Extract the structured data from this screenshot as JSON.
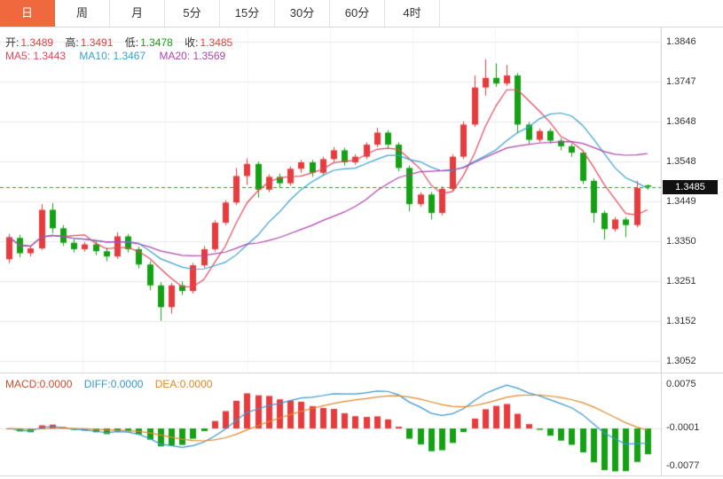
{
  "tabs": {
    "items": [
      {
        "label": "日",
        "active": true
      },
      {
        "label": "周",
        "active": false
      },
      {
        "label": "月",
        "active": false
      },
      {
        "label": "5分",
        "active": false
      },
      {
        "label": "15分",
        "active": false
      },
      {
        "label": "30分",
        "active": false
      },
      {
        "label": "60分",
        "active": false
      },
      {
        "label": "4时",
        "active": false
      }
    ]
  },
  "ohlc_bar": {
    "open_label": "开:",
    "open_value": "1.3489",
    "high_label": "高:",
    "high_value": "1.3491",
    "low_label": "低:",
    "low_value": "1.3478",
    "close_label": "收:",
    "close_value": "1.3485"
  },
  "ma_bar": {
    "ma5_label": "MA5:",
    "ma5_value": "1.3443",
    "ma10_label": "MA10:",
    "ma10_value": "1.3467",
    "ma20_label": "MA20:",
    "ma20_value": "1.3569"
  },
  "macd_bar": {
    "macd_label": "MACD:",
    "macd_value": "0.0000",
    "diff_label": "DIFF:",
    "diff_value": "0.0000",
    "dea_label": "DEA:",
    "dea_value": "0.0000"
  },
  "price_axis": {
    "labels": [
      "1.3846",
      "1.3747",
      "1.3648",
      "1.3548",
      "1.3449",
      "1.3350",
      "1.3251",
      "1.3152",
      "1.3052"
    ],
    "last_price": "1.3485"
  },
  "macd_axis": {
    "labels": [
      "0.0075",
      "-0.0001",
      "-0.0077"
    ]
  },
  "colors": {
    "candle_up": "#e83b3d",
    "candle_down": "#14a114",
    "ma5": "#e2485c",
    "ma10": "#3ba0cf",
    "ma20": "#b044b0",
    "diff": "#3a97d0",
    "dea": "#e0882a",
    "last_price_line": "#1fa31f",
    "price_tag_bg": "#111111",
    "price_tag_text": "#ffffff",
    "active_tab_bg": "#f0683e",
    "active_tab_text": "#ffffff"
  },
  "chart_data": [
    {
      "type": "candlestick",
      "ylim": [
        1.3052,
        1.3846
      ],
      "grid": true,
      "last_price": 1.3485,
      "overlays": [
        {
          "name": "MA5",
          "period": 5,
          "last_value": 1.3443
        },
        {
          "name": "MA10",
          "period": 10,
          "last_value": 1.3467
        },
        {
          "name": "MA20",
          "period": 20,
          "last_value": 1.3569
        }
      ],
      "ohlc": [
        [
          1.3305,
          1.3368,
          1.3295,
          1.336
        ],
        [
          1.3358,
          1.3366,
          1.331,
          1.332
        ],
        [
          1.332,
          1.3338,
          1.3312,
          1.3332
        ],
        [
          1.3332,
          1.3442,
          1.3328,
          1.3428
        ],
        [
          1.3428,
          1.3445,
          1.337,
          1.3382
        ],
        [
          1.3382,
          1.339,
          1.3338,
          1.3346
        ],
        [
          1.3346,
          1.3355,
          1.3322,
          1.333
        ],
        [
          1.333,
          1.3348,
          1.3324,
          1.3342
        ],
        [
          1.3342,
          1.335,
          1.3315,
          1.3325
        ],
        [
          1.3325,
          1.3334,
          1.33,
          1.3312
        ],
        [
          1.3312,
          1.3372,
          1.3306,
          1.3362
        ],
        [
          1.3362,
          1.3368,
          1.3322,
          1.333
        ],
        [
          1.333,
          1.3336,
          1.3282,
          1.3292
        ],
        [
          1.3292,
          1.33,
          1.3228,
          1.324
        ],
        [
          1.324,
          1.3248,
          1.3152,
          1.3186
        ],
        [
          1.3186,
          1.3246,
          1.317,
          1.324
        ],
        [
          1.324,
          1.325,
          1.3216,
          1.3226
        ],
        [
          1.3226,
          1.3296,
          1.322,
          1.329
        ],
        [
          1.329,
          1.3338,
          1.3284,
          1.333
        ],
        [
          1.333,
          1.3402,
          1.3324,
          1.3396
        ],
        [
          1.3396,
          1.3452,
          1.339,
          1.3446
        ],
        [
          1.3446,
          1.3532,
          1.344,
          1.3512
        ],
        [
          1.3512,
          1.3556,
          1.349,
          1.3542
        ],
        [
          1.3542,
          1.3548,
          1.3458,
          1.3478
        ],
        [
          1.3478,
          1.3516,
          1.3472,
          1.351
        ],
        [
          1.351,
          1.3518,
          1.3482,
          1.3494
        ],
        [
          1.3494,
          1.3536,
          1.3488,
          1.353
        ],
        [
          1.353,
          1.3552,
          1.352,
          1.3546
        ],
        [
          1.3546,
          1.3552,
          1.351,
          1.352
        ],
        [
          1.352,
          1.356,
          1.3514,
          1.3554
        ],
        [
          1.3554,
          1.3584,
          1.3548,
          1.3576
        ],
        [
          1.3576,
          1.3582,
          1.3538,
          1.3546
        ],
        [
          1.3546,
          1.3566,
          1.354,
          1.356
        ],
        [
          1.356,
          1.3596,
          1.3554,
          1.359
        ],
        [
          1.359,
          1.3632,
          1.3584,
          1.362
        ],
        [
          1.362,
          1.3626,
          1.3582,
          1.359
        ],
        [
          1.359,
          1.3596,
          1.3524,
          1.3532
        ],
        [
          1.3532,
          1.3538,
          1.3424,
          1.3442
        ],
        [
          1.3442,
          1.3472,
          1.3436,
          1.3466
        ],
        [
          1.3466,
          1.3472,
          1.3404,
          1.342
        ],
        [
          1.342,
          1.3486,
          1.3414,
          1.348
        ],
        [
          1.348,
          1.3566,
          1.3474,
          1.356
        ],
        [
          1.356,
          1.3648,
          1.3554,
          1.364
        ],
        [
          1.364,
          1.3762,
          1.3634,
          1.3732
        ],
        [
          1.3732,
          1.3802,
          1.3712,
          1.3756
        ],
        [
          1.3756,
          1.3792,
          1.3734,
          1.3742
        ],
        [
          1.3742,
          1.3788,
          1.3736,
          1.3762
        ],
        [
          1.3762,
          1.3768,
          1.3618,
          1.364
        ],
        [
          1.364,
          1.3646,
          1.3592,
          1.3602
        ],
        [
          1.3602,
          1.363,
          1.3596,
          1.3624
        ],
        [
          1.3624,
          1.363,
          1.3592,
          1.36
        ],
        [
          1.36,
          1.3606,
          1.3576,
          1.3586
        ],
        [
          1.3586,
          1.3592,
          1.356,
          1.357
        ],
        [
          1.357,
          1.3576,
          1.3492,
          1.35
        ],
        [
          1.35,
          1.3506,
          1.3396,
          1.342
        ],
        [
          1.342,
          1.3426,
          1.3354,
          1.338
        ],
        [
          1.338,
          1.341,
          1.3374,
          1.3404
        ],
        [
          1.3404,
          1.341,
          1.336,
          1.339
        ],
        [
          1.339,
          1.35,
          1.3384,
          1.3482
        ],
        [
          1.3489,
          1.3491,
          1.3478,
          1.3485
        ]
      ]
    },
    {
      "type": "bar",
      "name": "MACD",
      "ylim": [
        -0.0077,
        0.0075
      ],
      "axis_labels": [
        "0.0075",
        "-0.0001",
        "-0.0077"
      ],
      "displayed_values": {
        "macd": 0.0,
        "diff": 0.0,
        "dea": 0.0
      },
      "series_source": "chart_data.0.ohlc",
      "formula": {
        "diff": "EMA12-EMA26",
        "dea": "EMA9(DIFF)",
        "hist": "2*(DIFF-DEA)"
      }
    }
  ]
}
